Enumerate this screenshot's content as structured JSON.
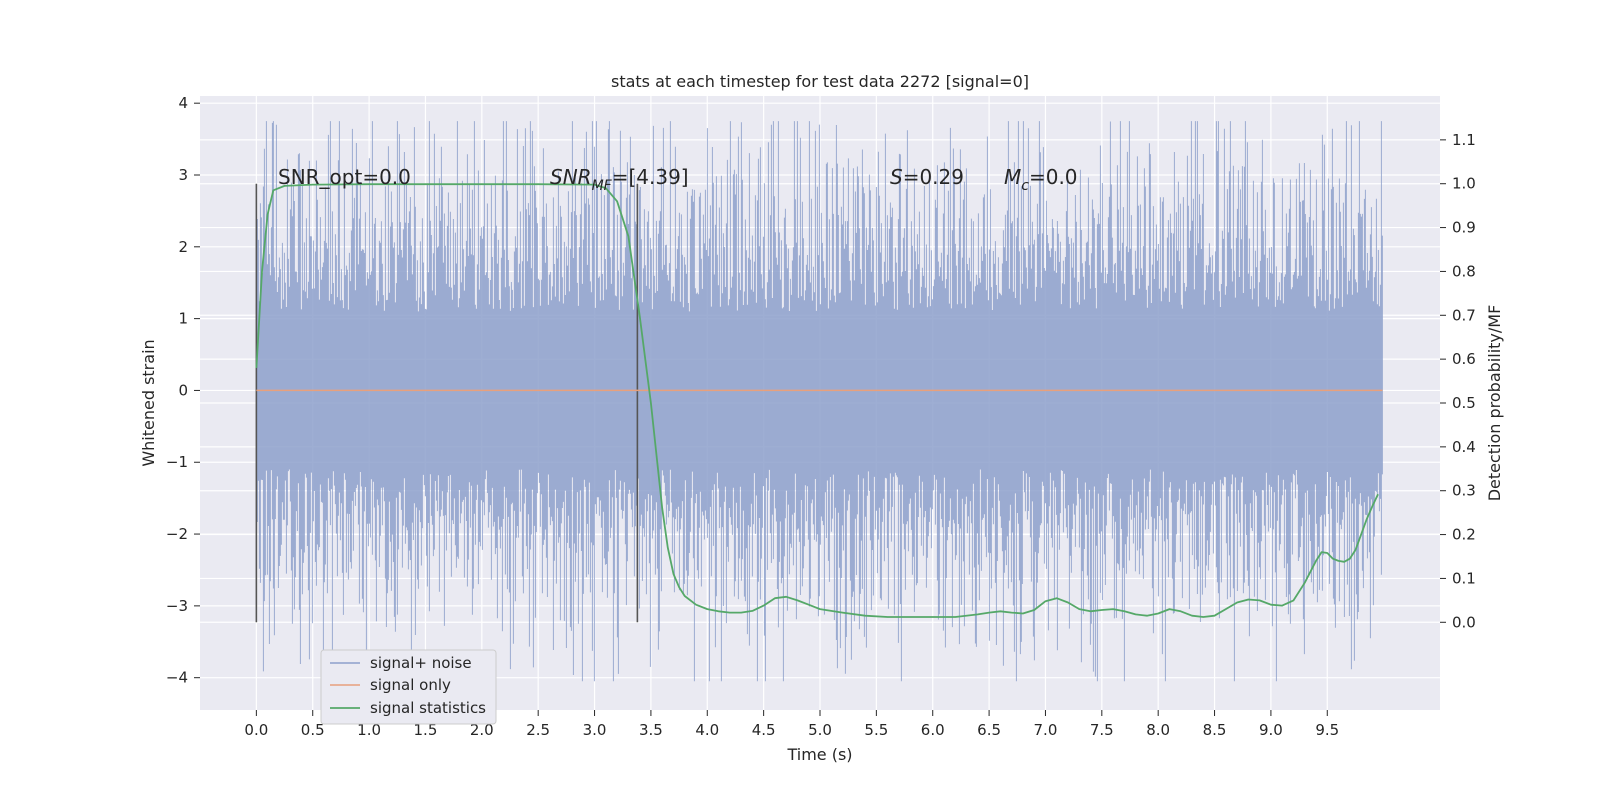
{
  "chart_data": {
    "type": "line",
    "title": "stats at each timestep for test data 2272 [signal=0]",
    "xlabel": "Time (s)",
    "ylabel": "Whitened strain",
    "ylabel_right": "Detection probability/MF",
    "xlim": [
      -0.5,
      10.5
    ],
    "ylim": [
      -4.45,
      4.1
    ],
    "ylim_right": [
      -0.2,
      1.2
    ],
    "x_ticks": [
      "0.0",
      "0.5",
      "1.0",
      "1.5",
      "2.0",
      "2.5",
      "3.0",
      "3.5",
      "4.0",
      "4.5",
      "5.0",
      "5.5",
      "6.0",
      "6.5",
      "7.0",
      "7.5",
      "8.0",
      "8.5",
      "9.0",
      "9.5"
    ],
    "y_ticks": [
      "−4",
      "−3",
      "−2",
      "−1",
      "0",
      "1",
      "2",
      "3",
      "4"
    ],
    "y_ticks_right": [
      "0.0",
      "0.1",
      "0.2",
      "0.3",
      "0.4",
      "0.5",
      "0.6",
      "0.7",
      "0.8",
      "0.9",
      "1.0",
      "1.1"
    ],
    "grid": true,
    "legend_position": "lower-left",
    "annotations": {
      "snr_opt": "SNR_opt=0.0",
      "snr_mf_main": "SNR",
      "snr_mf_sub": "MF",
      "snr_mf_value": "=[4.39]",
      "s_main": "S",
      "s_value": "=0.29",
      "mc_main": "M",
      "mc_sub": "c",
      "mc_value": "=0.0"
    },
    "vertical_markers": [
      0.0,
      3.38
    ],
    "series": [
      {
        "name": "signal+ noise",
        "axis": "left",
        "color": "#8da0cb",
        "x_range": [
          0.0,
          9.99
        ],
        "envelope": {
          "typical_abs_amplitude": 1.7,
          "max": 3.75,
          "min": -4.05
        }
      },
      {
        "name": "signal only",
        "axis": "left",
        "color": "#e8a07c",
        "x": [
          0.0,
          9.99
        ],
        "y": [
          0.0,
          0.0
        ]
      },
      {
        "name": "signal statistics",
        "axis": "right",
        "color": "#55a868",
        "x": [
          0.0,
          0.05,
          0.1,
          0.15,
          0.25,
          0.5,
          1.0,
          2.0,
          2.5,
          3.0,
          3.1,
          3.2,
          3.3,
          3.4,
          3.5,
          3.6,
          3.65,
          3.7,
          3.75,
          3.8,
          3.9,
          4.0,
          4.1,
          4.2,
          4.3,
          4.4,
          4.5,
          4.6,
          4.7,
          4.8,
          4.9,
          5.0,
          5.2,
          5.4,
          5.6,
          5.8,
          6.0,
          6.2,
          6.4,
          6.5,
          6.6,
          6.7,
          6.8,
          6.9,
          7.0,
          7.1,
          7.2,
          7.3,
          7.4,
          7.5,
          7.6,
          7.7,
          7.8,
          7.9,
          8.0,
          8.1,
          8.2,
          8.3,
          8.4,
          8.5,
          8.6,
          8.7,
          8.8,
          8.9,
          9.0,
          9.1,
          9.2,
          9.3,
          9.4,
          9.45,
          9.5,
          9.55,
          9.6,
          9.65,
          9.7,
          9.75,
          9.8,
          9.85,
          9.9,
          9.95
        ],
        "y": [
          0.58,
          0.8,
          0.93,
          0.985,
          0.995,
          0.998,
          0.999,
          0.999,
          0.999,
          0.998,
          0.99,
          0.96,
          0.88,
          0.7,
          0.5,
          0.26,
          0.17,
          0.11,
          0.08,
          0.06,
          0.04,
          0.03,
          0.025,
          0.022,
          0.022,
          0.026,
          0.038,
          0.055,
          0.058,
          0.05,
          0.04,
          0.03,
          0.022,
          0.015,
          0.012,
          0.012,
          0.012,
          0.012,
          0.018,
          0.022,
          0.025,
          0.022,
          0.02,
          0.028,
          0.048,
          0.055,
          0.045,
          0.03,
          0.025,
          0.028,
          0.03,
          0.025,
          0.018,
          0.015,
          0.02,
          0.03,
          0.025,
          0.015,
          0.012,
          0.015,
          0.03,
          0.045,
          0.052,
          0.05,
          0.04,
          0.038,
          0.05,
          0.09,
          0.14,
          0.16,
          0.158,
          0.145,
          0.14,
          0.138,
          0.145,
          0.165,
          0.2,
          0.235,
          0.265,
          0.292
        ]
      }
    ]
  }
}
